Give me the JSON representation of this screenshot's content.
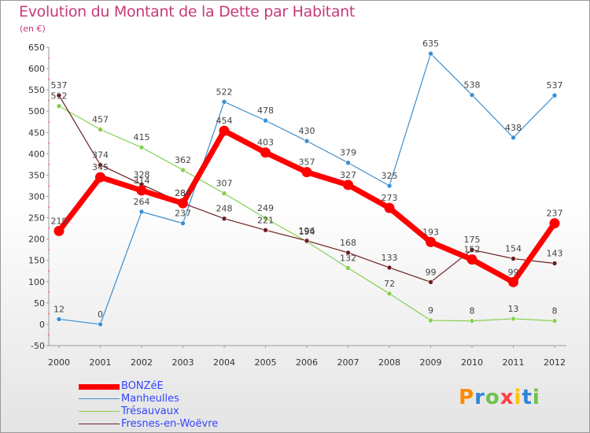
{
  "title": "Evolution du Montant de la Dette par Habitant",
  "subtitle": "(en €)",
  "logo": {
    "text": "Proxiti"
  },
  "chart_data": {
    "type": "line",
    "title": "Evolution du Montant de la Dette par Habitant",
    "ylabel": "(en €)",
    "xlabel": "",
    "ylim": [
      -50,
      650
    ],
    "y_ticks": [
      650,
      600,
      550,
      500,
      450,
      400,
      350,
      300,
      250,
      200,
      150,
      100,
      50,
      0,
      -50
    ],
    "x": [
      "2000",
      "2001",
      "2002",
      "2003",
      "2004",
      "2005",
      "2006",
      "2007",
      "2008",
      "2009",
      "2010",
      "2011",
      "2012"
    ],
    "grid": false,
    "legend_position": "bottom-left",
    "series": [
      {
        "name": "BONZéE",
        "color": "#ff0000",
        "values": [
          219,
          345,
          314,
          284,
          454,
          403,
          357,
          327,
          273,
          193,
          152,
          99,
          237
        ]
      },
      {
        "name": "Manheulles",
        "color": "#3a8ed0",
        "values": [
          12,
          0,
          264,
          237,
          522,
          478,
          430,
          379,
          325,
          635,
          538,
          438,
          537
        ]
      },
      {
        "name": "Trésauvaux",
        "color": "#86d050",
        "values": [
          512,
          457,
          415,
          362,
          307,
          249,
          194,
          132,
          72,
          9,
          8,
          13,
          8
        ]
      },
      {
        "name": "Fresnes-en-Woëvre",
        "color": "#6b1e1e",
        "values": [
          537,
          374,
          328,
          284,
          248,
          221,
          196,
          168,
          133,
          99,
          175,
          154,
          143
        ]
      }
    ]
  }
}
